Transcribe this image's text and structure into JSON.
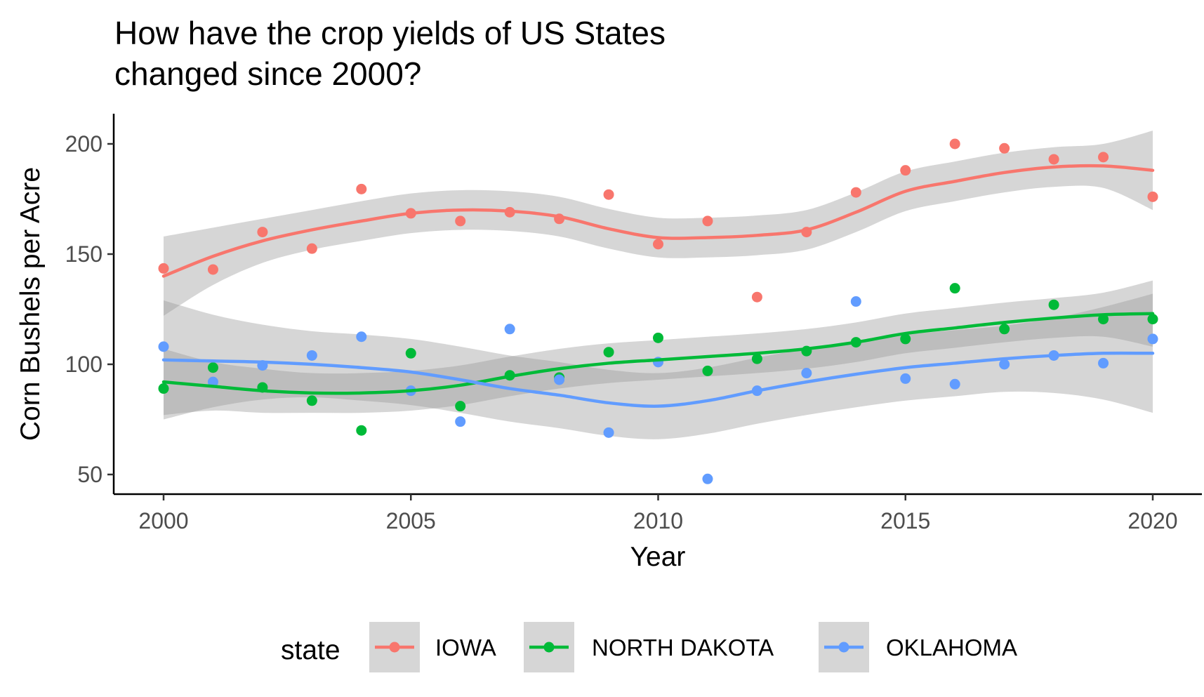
{
  "colors": {
    "IOWA": "#F8766D",
    "NORTH DAKOTA": "#00BA38",
    "OKLAHOMA": "#619CFF",
    "band": "#999999"
  },
  "chart_data": {
    "type": "scatter",
    "title_lines": [
      "How have the crop yields of US States",
      "changed since 2000?"
    ],
    "xlabel": "Year",
    "ylabel": "Corn Bushels per Acre",
    "xlim": [
      1999,
      2021
    ],
    "ylim": [
      43,
      215
    ],
    "x_ticks": [
      2000,
      2005,
      2010,
      2015,
      2020
    ],
    "y_ticks": [
      50,
      100,
      150,
      200
    ],
    "grid": false,
    "smooth": "loess with confidence band",
    "legend": {
      "title": "state",
      "position": "bottom"
    },
    "x": [
      2000,
      2001,
      2002,
      2003,
      2004,
      2005,
      2006,
      2007,
      2008,
      2009,
      2010,
      2011,
      2012,
      2013,
      2014,
      2015,
      2016,
      2017,
      2018,
      2019,
      2020
    ],
    "series": [
      {
        "name": "IOWA",
        "values": [
          143.5,
          143,
          160,
          152.5,
          179.5,
          168.5,
          165,
          169,
          166,
          177,
          154.5,
          165,
          130.5,
          160,
          178,
          188,
          200,
          198,
          193,
          194,
          176
        ],
        "smooth": [
          140,
          149,
          156,
          161,
          165,
          168.5,
          170,
          169.5,
          167,
          161.5,
          157.5,
          157.5,
          158.5,
          161,
          169,
          178.5,
          183,
          187,
          189.5,
          190,
          188
        ],
        "band_width": [
          18,
          13,
          10,
          9,
          9,
          9,
          9,
          9,
          9,
          9,
          9,
          9,
          9,
          9,
          9,
          9,
          9,
          9,
          9,
          10,
          18
        ]
      },
      {
        "name": "NORTH DAKOTA",
        "values": [
          89,
          98.5,
          89.5,
          83.5,
          70,
          105,
          81,
          95,
          94,
          105.5,
          112,
          97,
          102.5,
          106,
          110,
          111.5,
          134.5,
          116,
          127,
          120.5,
          120.5
        ],
        "smooth": [
          92,
          90,
          88,
          87,
          87,
          88,
          90.5,
          94.5,
          98,
          100.5,
          102,
          103.5,
          105,
          107,
          110,
          114,
          116.5,
          119,
          121,
          122.5,
          123
        ],
        "band_width": [
          15,
          11,
          10,
          9,
          9,
          9,
          9,
          9,
          9,
          9,
          9,
          9,
          9,
          9,
          9,
          9,
          9,
          9,
          9,
          10,
          15
        ]
      },
      {
        "name": "OKLAHOMA",
        "values": [
          108,
          92,
          99.5,
          104,
          112.5,
          88,
          74,
          116,
          93,
          69,
          101,
          48,
          88,
          96,
          128.5,
          93.5,
          91,
          100,
          104,
          100.5,
          111.5
        ],
        "smooth": [
          102,
          101.5,
          101,
          100,
          98.5,
          96.5,
          93,
          89,
          86,
          82.5,
          81,
          83.5,
          88,
          92,
          95.5,
          98.5,
          100.5,
          102.5,
          104,
          105,
          105
        ],
        "band_width": [
          27,
          21,
          17,
          15,
          15,
          15,
          15,
          15,
          15,
          15,
          15,
          15,
          15,
          15,
          15,
          15,
          15,
          15,
          17,
          21,
          27
        ]
      }
    ]
  }
}
